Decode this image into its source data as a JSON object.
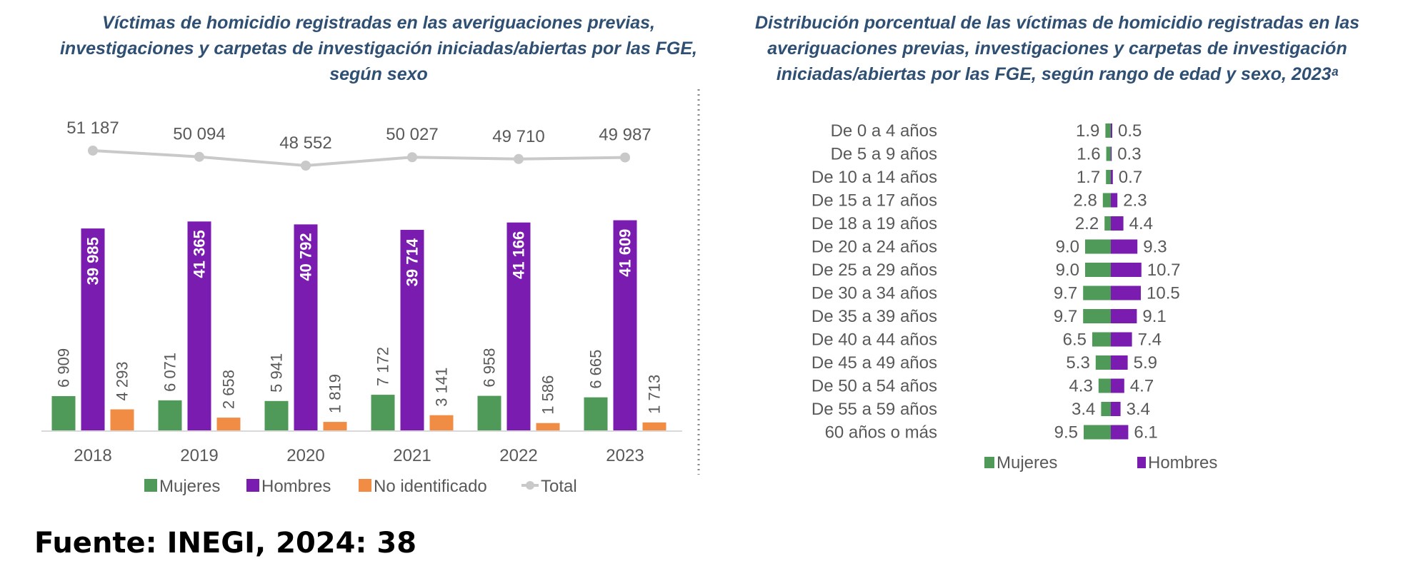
{
  "left_title": "Víctimas de homicidio registradas en las averiguaciones previas, investigaciones y carpetas de investigación iniciadas/abiertas por las FGE, según sexo",
  "right_title": "Distribución porcentual de las víctimas de homicidio registradas en las averiguaciones previas, investigaciones y carpetas de investigación iniciadas/abiertas por las FGE, según rango de edad y sexo, 2023",
  "right_title_mark": "ᵃ",
  "source": "Fuente: INEGI, 2024: 38",
  "colors": {
    "mujeres": "#4f9a58",
    "hombres": "#7a1cb0",
    "no_identificado": "#f08c44",
    "total": "#c9c9c9"
  },
  "chart_data": [
    {
      "type": "bar",
      "categories": [
        "2018",
        "2019",
        "2020",
        "2021",
        "2022",
        "2023"
      ],
      "series": [
        {
          "name": "Mujeres",
          "values": [
            6909,
            6071,
            5941,
            7172,
            6958,
            6665
          ],
          "labels": [
            "6 909",
            "6 071",
            "5 941",
            "7 172",
            "6 958",
            "6 665"
          ]
        },
        {
          "name": "Hombres",
          "values": [
            39985,
            41365,
            40792,
            39714,
            41166,
            41609
          ],
          "labels": [
            "39 985",
            "41 365",
            "40 792",
            "39 714",
            "41 166",
            "41 609"
          ]
        },
        {
          "name": "No identificado",
          "values": [
            4293,
            2658,
            1819,
            3141,
            1586,
            1713
          ],
          "labels": [
            "4 293",
            "2 658",
            "1 819",
            "3 141",
            "1 586",
            "1 713"
          ]
        }
      ],
      "line": {
        "name": "Total",
        "values": [
          51187,
          50094,
          48552,
          50027,
          49710,
          49987
        ],
        "labels": [
          "51 187",
          "50 094",
          "48 552",
          "50 027",
          "49 710",
          "49 987"
        ]
      },
      "legend": [
        "Mujeres",
        "Hombres",
        "No identificado",
        "Total"
      ],
      "legend_position": "bottom"
    },
    {
      "type": "bar",
      "orientation": "horizontal",
      "categories": [
        "De 0 a 4 años",
        "De 5 a 9 años",
        "De 10 a 14 años",
        "De 15 a 17 años",
        "De 18 a 19 años",
        "De 20 a 24 años",
        "De 25 a 29 años",
        "De 30 a 34 años",
        "De 35 a 39 años",
        "De 40 a 44 años",
        "De 45 a 49 años",
        "De 50 a 54 años",
        "De 55 a 59 años",
        "60 años o más"
      ],
      "series": [
        {
          "name": "Mujeres",
          "values": [
            1.9,
            1.6,
            1.7,
            2.8,
            2.2,
            9.0,
            9.0,
            9.7,
            9.7,
            6.5,
            5.3,
            4.3,
            3.4,
            9.5
          ],
          "labels": [
            "1.9",
            "1.6",
            "1.7",
            "2.8",
            "2.2",
            "9.0",
            "9.0",
            "9.7",
            "9.7",
            "6.5",
            "5.3",
            "4.3",
            "3.4",
            "9.5"
          ]
        },
        {
          "name": "Hombres",
          "values": [
            0.5,
            0.3,
            0.7,
            2.3,
            4.4,
            9.3,
            10.7,
            10.5,
            9.1,
            7.4,
            5.9,
            4.7,
            3.4,
            6.1
          ],
          "labels": [
            "0.5",
            "0.3",
            "0.7",
            "2.3",
            "4.4",
            "9.3",
            "10.7",
            "10.5",
            "9.1",
            "7.4",
            "5.9",
            "4.7",
            "3.4",
            "6.1"
          ]
        }
      ],
      "legend": [
        "Mujeres",
        "Hombres"
      ],
      "legend_position": "bottom"
    }
  ]
}
